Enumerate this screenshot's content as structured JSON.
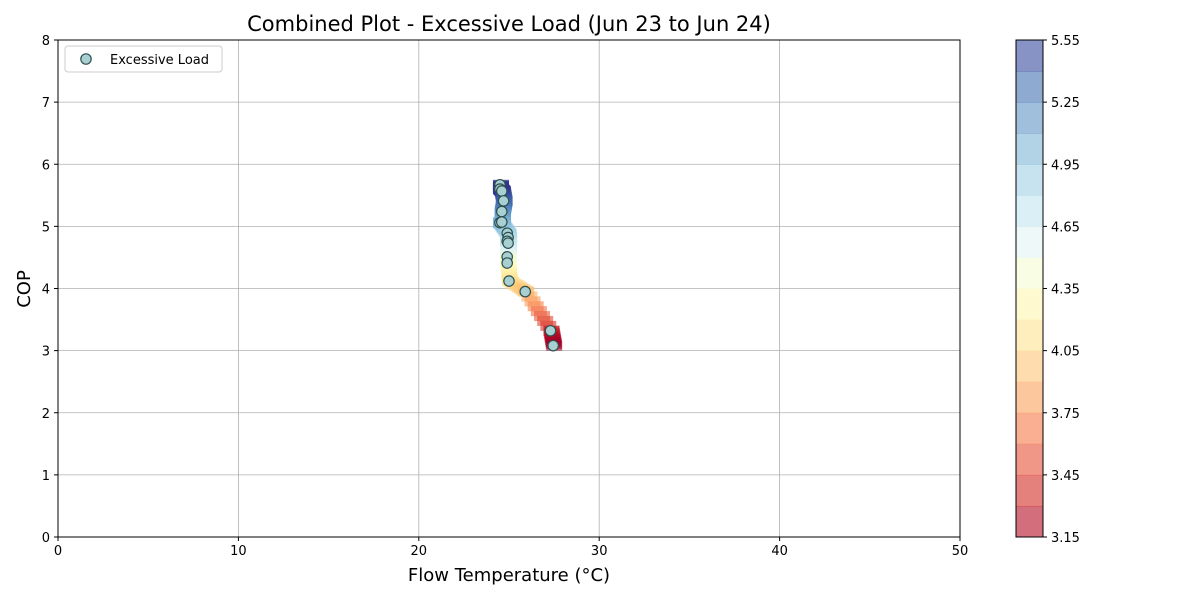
{
  "chart_data": {
    "type": "scatter",
    "title": "Combined Plot - Excessive Load (Jun 23 to Jun 24)",
    "xlabel": "Flow Temperature (°C)",
    "ylabel": "COP",
    "xlim": [
      0,
      50
    ],
    "ylim": [
      0,
      8
    ],
    "xticks": [
      "0",
      "10",
      "20",
      "30",
      "40",
      "50"
    ],
    "yticks": [
      "0",
      "1",
      "2",
      "3",
      "4",
      "5",
      "6",
      "7",
      "8"
    ],
    "grid": true,
    "legend": {
      "position": "top-left",
      "entries": [
        "Excessive Load"
      ]
    },
    "series": [
      {
        "name": "Excessive Load",
        "marker_color": "#a8d0d2",
        "edge_color": "#2f4f4f",
        "x": [
          24.5,
          24.5,
          24.6,
          24.7,
          24.6,
          24.5,
          24.6,
          24.9,
          24.95,
          24.9,
          24.95,
          24.9,
          24.9,
          25.0,
          25.9,
          27.3,
          27.45
        ],
        "y": [
          5.67,
          5.6,
          5.57,
          5.41,
          5.24,
          5.06,
          5.07,
          4.89,
          4.82,
          4.76,
          4.73,
          4.51,
          4.41,
          4.12,
          3.95,
          3.32,
          3.08
        ]
      }
    ],
    "colorbar": {
      "ticks": [
        "3.15",
        "3.45",
        "3.75",
        "4.05",
        "4.35",
        "4.65",
        "4.95",
        "5.25",
        "5.55"
      ],
      "range": [
        3.15,
        5.55
      ],
      "colormap": "RdYlBu",
      "alpha": 0.6
    }
  }
}
